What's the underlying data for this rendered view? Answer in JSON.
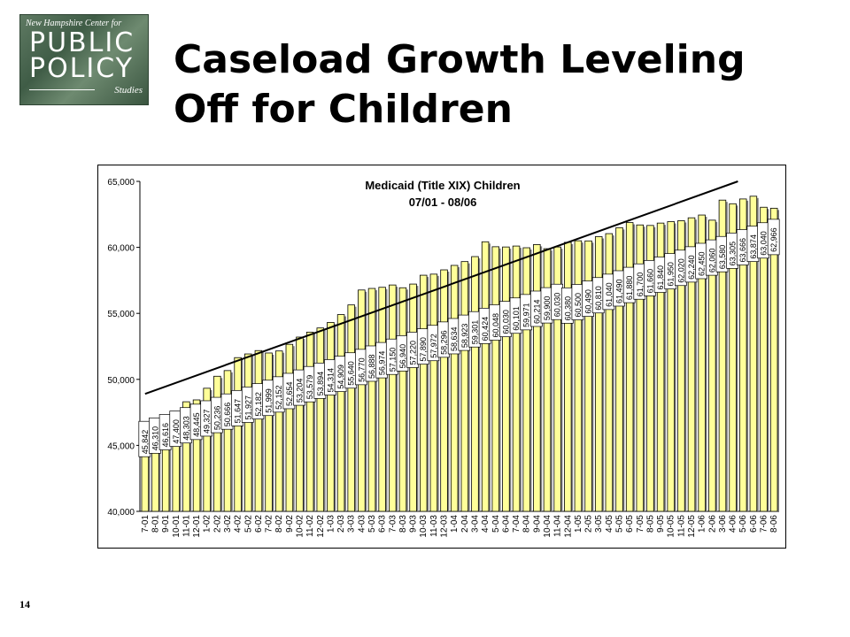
{
  "slide": {
    "title_line1": "Caseload Growth Leveling",
    "title_line2": "Off for Children",
    "page_number": "14"
  },
  "logo": {
    "tagline": "New Hampshire Center for",
    "word1": "PUBLIC",
    "word2": "POLICY",
    "word3": "Studies"
  },
  "chart_data": {
    "type": "bar",
    "title": "Medicaid (Title XIX) Children",
    "subtitle": "07/01 - 08/06",
    "ylim": [
      40000,
      65000
    ],
    "yticks": [
      "40,000",
      "45,000",
      "50,000",
      "55,000",
      "60,000",
      "65,000"
    ],
    "grid": false,
    "bar_color": "#FFFF99",
    "trendline": {
      "start": 48900,
      "end": 65000
    },
    "categories": [
      "7-01",
      "8-01",
      "9-01",
      "10-01",
      "11-01",
      "12-01",
      "1-02",
      "2-02",
      "3-02",
      "4-02",
      "5-02",
      "6-02",
      "7-02",
      "8-02",
      "9-02",
      "10-02",
      "11-02",
      "12-02",
      "1-03",
      "2-03",
      "3-03",
      "4-03",
      "5-03",
      "6-03",
      "7-03",
      "8-03",
      "9-03",
      "10-03",
      "11-03",
      "12-03",
      "1-04",
      "2-04",
      "3-04",
      "4-04",
      "5-04",
      "6-04",
      "7-04",
      "8-04",
      "9-04",
      "10-04",
      "11-04",
      "12-04",
      "1-05",
      "2-05",
      "3-05",
      "4-05",
      "5-05",
      "6-05",
      "7-05",
      "8-05",
      "9-05",
      "10-05",
      "11-05",
      "12-05",
      "1-06",
      "2-06",
      "3-06",
      "4-06",
      "5-06",
      "6-06",
      "7-06",
      "8-06"
    ],
    "values": [
      45842,
      46310,
      46616,
      47400,
      48303,
      48445,
      49327,
      50236,
      50666,
      51647,
      51927,
      52182,
      51999,
      52152,
      52654,
      53204,
      53579,
      53894,
      54314,
      54909,
      55640,
      56770,
      56888,
      56974,
      57150,
      56940,
      57220,
      57890,
      57972,
      58296,
      58634,
      58923,
      59301,
      60424,
      60048,
      60030,
      60101,
      59971,
      60214,
      59900,
      60030,
      60380,
      60500,
      60490,
      60810,
      61040,
      61490,
      61880,
      61700,
      61660,
      61840,
      61950,
      62020,
      62240,
      62450,
      62060,
      63580,
      63305,
      63666,
      63874,
      63040,
      62966
    ],
    "data_labels": [
      "45,842",
      "46,310",
      "46,616",
      "47,400",
      "48,303",
      "48,445",
      "49,327",
      "50,236",
      "50,666",
      "51,647",
      "51,927",
      "52,182",
      "51,999",
      "52,152",
      "52,654",
      "53,204",
      "53,579",
      "53,894",
      "54,314",
      "54,909",
      "55,640",
      "56,770",
      "56,888",
      "56,974",
      "57,150",
      "56,940",
      "57,220",
      "57,890",
      "57,972",
      "58,296",
      "58,634",
      "58,923",
      "59,301",
      "60,424",
      "60,048",
      "60,030",
      "60,101",
      "59,971",
      "60,214",
      "59,900",
      "60,030",
      "60,380",
      "60,500",
      "60,490",
      "60,810",
      "61,040",
      "61,490",
      "61,880",
      "61,700",
      "61,660",
      "61,840",
      "61,950",
      "62,020",
      "62,240",
      "62,450",
      "62,060",
      "63,580",
      "63,305",
      "63,666",
      "63,874",
      "63,040",
      "62,966"
    ]
  }
}
